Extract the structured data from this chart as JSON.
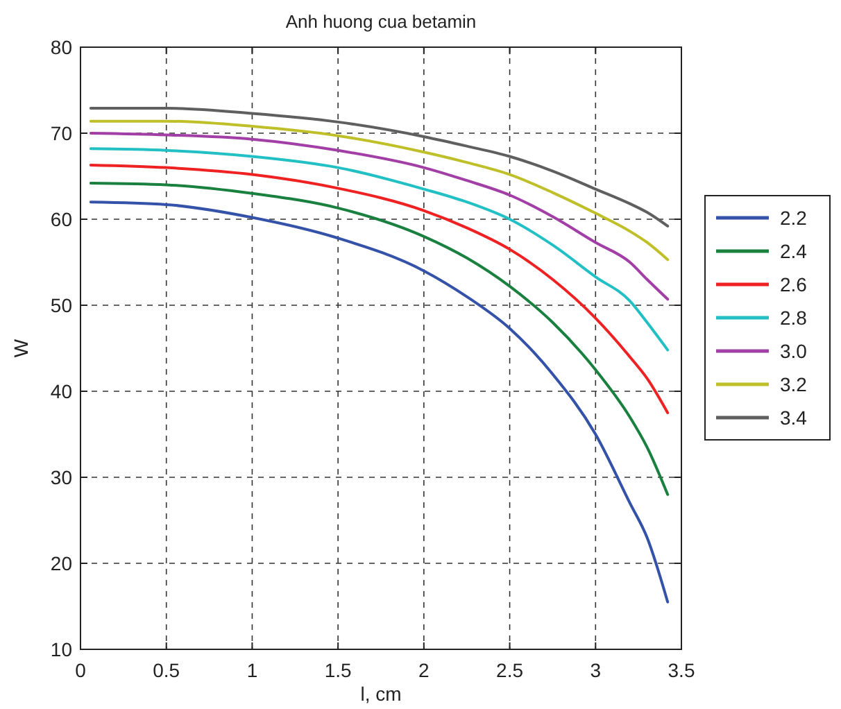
{
  "chart_data": {
    "type": "line",
    "title": "Anh huong cua betamin",
    "xlabel": "l, cm",
    "ylabel": "W",
    "x": [
      0.06,
      0.5,
      1,
      1.5,
      2,
      2.25,
      2.5,
      2.75,
      3,
      3.2,
      3.3,
      3.42
    ],
    "series": [
      {
        "name": "2.2",
        "color": "#3352a8",
        "values": [
          62,
          61.7,
          60.2,
          57.8,
          54,
          51,
          47.3,
          42,
          35,
          27,
          23,
          15.5
        ]
      },
      {
        "name": "2.4",
        "color": "#1a8040",
        "values": [
          64.2,
          64,
          63,
          61.3,
          58,
          55.5,
          52.2,
          48,
          42.5,
          37,
          33.5,
          28
        ]
      },
      {
        "name": "2.6",
        "color": "#ee2222",
        "values": [
          66.3,
          66,
          65.2,
          63.6,
          61,
          59,
          56.5,
          53,
          48.5,
          44,
          41.5,
          37.5
        ]
      },
      {
        "name": "2.8",
        "color": "#22c0c4",
        "values": [
          68.2,
          68,
          67.3,
          66,
          63.5,
          62,
          60,
          57,
          53.3,
          50.5,
          48,
          44.8
        ]
      },
      {
        "name": "3.0",
        "color": "#a23fa6",
        "values": [
          70,
          69.8,
          69.3,
          68,
          66,
          64.5,
          62.8,
          60.3,
          57.3,
          55,
          53,
          50.7
        ]
      },
      {
        "name": "3.2",
        "color": "#bfbf2a",
        "values": [
          71.4,
          71.4,
          70.8,
          69.7,
          67.8,
          66.6,
          65.2,
          63.1,
          60.7,
          58.6,
          57.3,
          55.3
        ]
      },
      {
        "name": "3.4",
        "color": "#5f5f5f",
        "values": [
          72.9,
          72.9,
          72.3,
          71.3,
          69.6,
          68.5,
          67.3,
          65.6,
          63.5,
          61.8,
          60.8,
          59.2
        ]
      }
    ],
    "xlim": [
      0,
      3.5
    ],
    "xticks": [
      0,
      0.5,
      1,
      1.5,
      2,
      2.5,
      3,
      3.5
    ],
    "ylim": [
      10,
      80
    ],
    "yticks": [
      10,
      20,
      30,
      40,
      50,
      60,
      70,
      80
    ],
    "grid": true,
    "legend": "right",
    "marker": "none",
    "line_style": "solid"
  }
}
